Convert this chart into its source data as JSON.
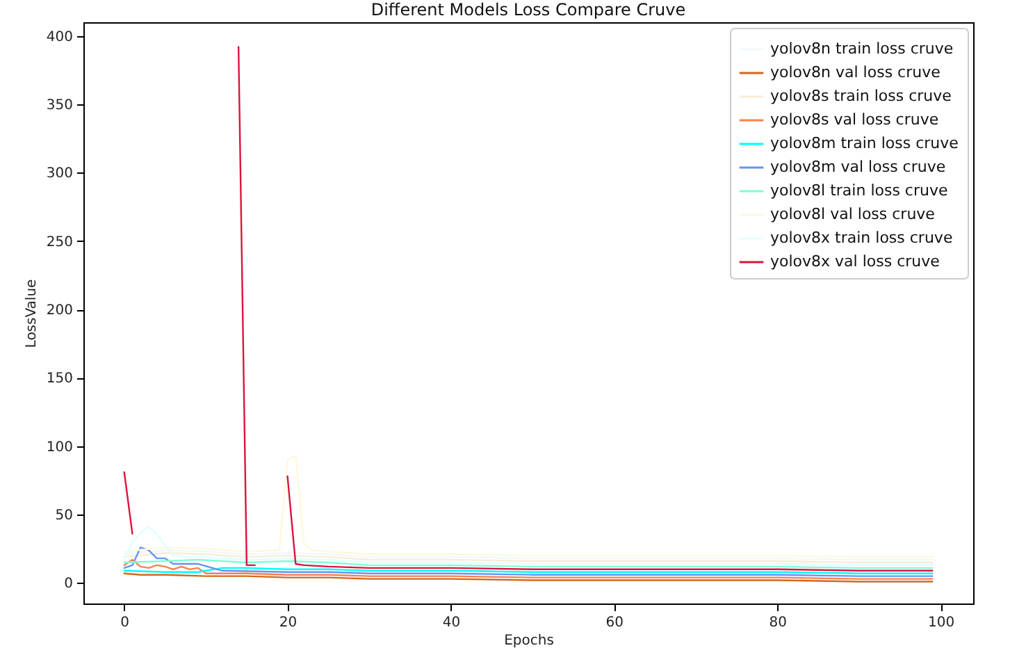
{
  "chart_data": {
    "type": "line",
    "title": "Different Models Loss Compare Cruve",
    "xlabel": "Epochs",
    "ylabel": "LossValue",
    "xlim": [
      -5,
      104
    ],
    "ylim": [
      -15,
      410
    ],
    "xticks": [
      0,
      20,
      40,
      60,
      80,
      100
    ],
    "yticks": [
      0,
      50,
      100,
      150,
      200,
      250,
      300,
      350,
      400
    ],
    "grid": false,
    "legend": "top right",
    "line_style": "solid",
    "series": [
      {
        "name": "yolov8n train loss cruve",
        "color": "#f0f8ff",
        "x": [
          0,
          5,
          10,
          15,
          20,
          25,
          30,
          40,
          50,
          60,
          70,
          80,
          90,
          99
        ],
        "values": [
          21,
          24,
          23,
          21,
          22,
          21,
          19,
          19,
          18,
          18,
          18,
          18,
          17,
          17
        ]
      },
      {
        "name": "yolov8n val loss cruve",
        "color": "#d2691e",
        "x": [
          0,
          2,
          5,
          10,
          15,
          20,
          25,
          30,
          40,
          50,
          60,
          70,
          80,
          90,
          99
        ],
        "values": [
          7,
          6,
          6,
          5,
          5,
          4,
          4,
          3,
          3,
          2,
          2,
          2,
          2,
          1,
          1
        ]
      },
      {
        "name": "yolov8s train loss cruve",
        "color": "#faebd7",
        "x": [
          0,
          5,
          10,
          15,
          20,
          25,
          30,
          40,
          50,
          60,
          70,
          80,
          90,
          99
        ],
        "values": [
          19,
          22,
          21,
          19,
          20,
          19,
          17,
          17,
          16,
          16,
          16,
          16,
          15,
          15
        ]
      },
      {
        "name": "yolov8s val loss cruve",
        "color": "#ff7f50",
        "x": [
          0,
          1,
          2,
          3,
          4,
          5,
          6,
          7,
          8,
          9,
          10,
          15,
          20,
          25,
          30,
          40,
          50,
          60,
          70,
          80,
          90,
          99
        ],
        "values": [
          13,
          17,
          12,
          11,
          13,
          12,
          10,
          12,
          10,
          11,
          7,
          7,
          6,
          6,
          5,
          5,
          4,
          4,
          4,
          4,
          3,
          3
        ]
      },
      {
        "name": "yolov8m train loss cruve",
        "color": "#00ffff",
        "x": [
          0,
          5,
          9,
          12,
          15,
          20,
          25,
          30,
          40,
          50,
          60,
          70,
          80,
          90,
          99
        ],
        "values": [
          9,
          8,
          8,
          11,
          11,
          10,
          10,
          9,
          9,
          8,
          8,
          8,
          8,
          7,
          7
        ]
      },
      {
        "name": "yolov8m val loss cruve",
        "color": "#6495ed",
        "x": [
          0,
          1,
          2,
          3,
          4,
          5,
          6,
          9,
          12,
          20,
          25,
          30,
          40,
          50,
          60,
          70,
          80,
          90,
          99
        ],
        "values": [
          11,
          13,
          26,
          24,
          18,
          18,
          14,
          14,
          9,
          8,
          8,
          7,
          7,
          6,
          6,
          6,
          6,
          5,
          5
        ]
      },
      {
        "name": "yolov8l train loss cruve",
        "color": "#7fffd4",
        "x": [
          0,
          5,
          9,
          15,
          20,
          25,
          30,
          40,
          50,
          60,
          70,
          80,
          90,
          99
        ],
        "values": [
          15,
          16,
          17,
          15,
          16,
          15,
          13,
          13,
          12,
          12,
          12,
          12,
          11,
          11
        ]
      },
      {
        "name": "yolov8l val loss cruve",
        "color": "#fff8dc",
        "x": [
          0,
          5,
          10,
          15,
          19,
          20,
          21,
          22,
          23,
          25,
          30,
          40,
          50,
          60,
          70,
          80,
          90,
          99
        ],
        "values": [
          23,
          26,
          25,
          23,
          24,
          90,
          93,
          29,
          24,
          23,
          21,
          21,
          20,
          20,
          20,
          20,
          19,
          19
        ]
      },
      {
        "name": "yolov8x train loss cruve",
        "color": "#e0ffff",
        "x": [
          0,
          1,
          2,
          3,
          4,
          5,
          6,
          8,
          10,
          15,
          20,
          25,
          30,
          40,
          50,
          60,
          70,
          80,
          90,
          99
        ],
        "values": [
          17,
          30,
          37,
          41,
          36,
          28,
          20,
          19,
          19,
          17,
          18,
          17,
          15,
          15,
          14,
          14,
          14,
          14,
          13,
          13
        ]
      },
      {
        "name": "yolov8x val loss cruve",
        "color": "#dc143c",
        "x": [
          0,
          1,
          2,
          14,
          15,
          16,
          17,
          20,
          21,
          22,
          25,
          30,
          40,
          50,
          60,
          70,
          80,
          90,
          99
        ],
        "values": [
          81,
          36,
          null,
          392,
          13,
          13,
          null,
          78,
          14,
          13,
          12,
          11,
          11,
          10,
          10,
          10,
          10,
          9,
          9
        ]
      }
    ]
  }
}
